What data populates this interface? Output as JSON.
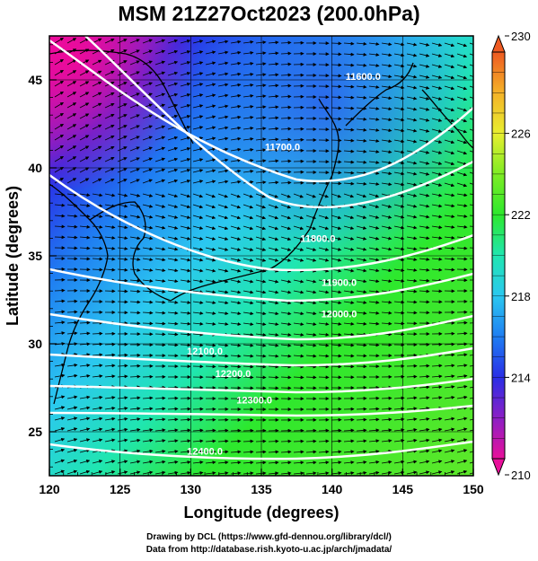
{
  "title": "MSM 21Z27Oct2023 (200.0hPa)",
  "map": {
    "xlabel": "Longitude (degrees)",
    "ylabel": "Latitude  (degrees)",
    "x_range": [
      120,
      150
    ],
    "y_range": [
      22.5,
      47.5
    ],
    "x_ticks": [
      "120",
      "125",
      "130",
      "135",
      "140",
      "145",
      "150"
    ],
    "y_ticks": [
      "25",
      "30",
      "35",
      "40",
      "45"
    ],
    "grid": true,
    "contour_labels": [
      {
        "text": "11600.0",
        "lon": 142.2,
        "lat": 45.0
      },
      {
        "text": "11700.0",
        "lon": 136.5,
        "lat": 41.0
      },
      {
        "text": "11800.0",
        "lon": 139.0,
        "lat": 35.8
      },
      {
        "text": "11900.0",
        "lon": 140.5,
        "lat": 33.3
      },
      {
        "text": "12000.0",
        "lon": 140.5,
        "lat": 31.5
      },
      {
        "text": "12100.0",
        "lon": 131.0,
        "lat": 29.4
      },
      {
        "text": "12200.0",
        "lon": 133.0,
        "lat": 28.1
      },
      {
        "text": "12300.0",
        "lon": 134.5,
        "lat": 26.6
      },
      {
        "text": "12400.0",
        "lon": 131.0,
        "lat": 23.7
      }
    ]
  },
  "colorbar": {
    "min": 210,
    "max": 230,
    "tick_labels": [
      "230",
      "226",
      "222",
      "218",
      "214",
      "210"
    ],
    "colors": [
      "#e8109a",
      "#8b1fc5",
      "#2a2ee6",
      "#1f7ef2",
      "#2bc8f0",
      "#20e6b0",
      "#2de82d",
      "#7eec24",
      "#e8ee30",
      "#f4b228",
      "#ee5a22"
    ]
  },
  "credits": {
    "line1": "Drawing by DCL (https://www.gfd-dennou.org/library/dcl/)",
    "line2": "Data from http://database.rish.kyoto-u.ac.jp/arch/jmadata/"
  }
}
